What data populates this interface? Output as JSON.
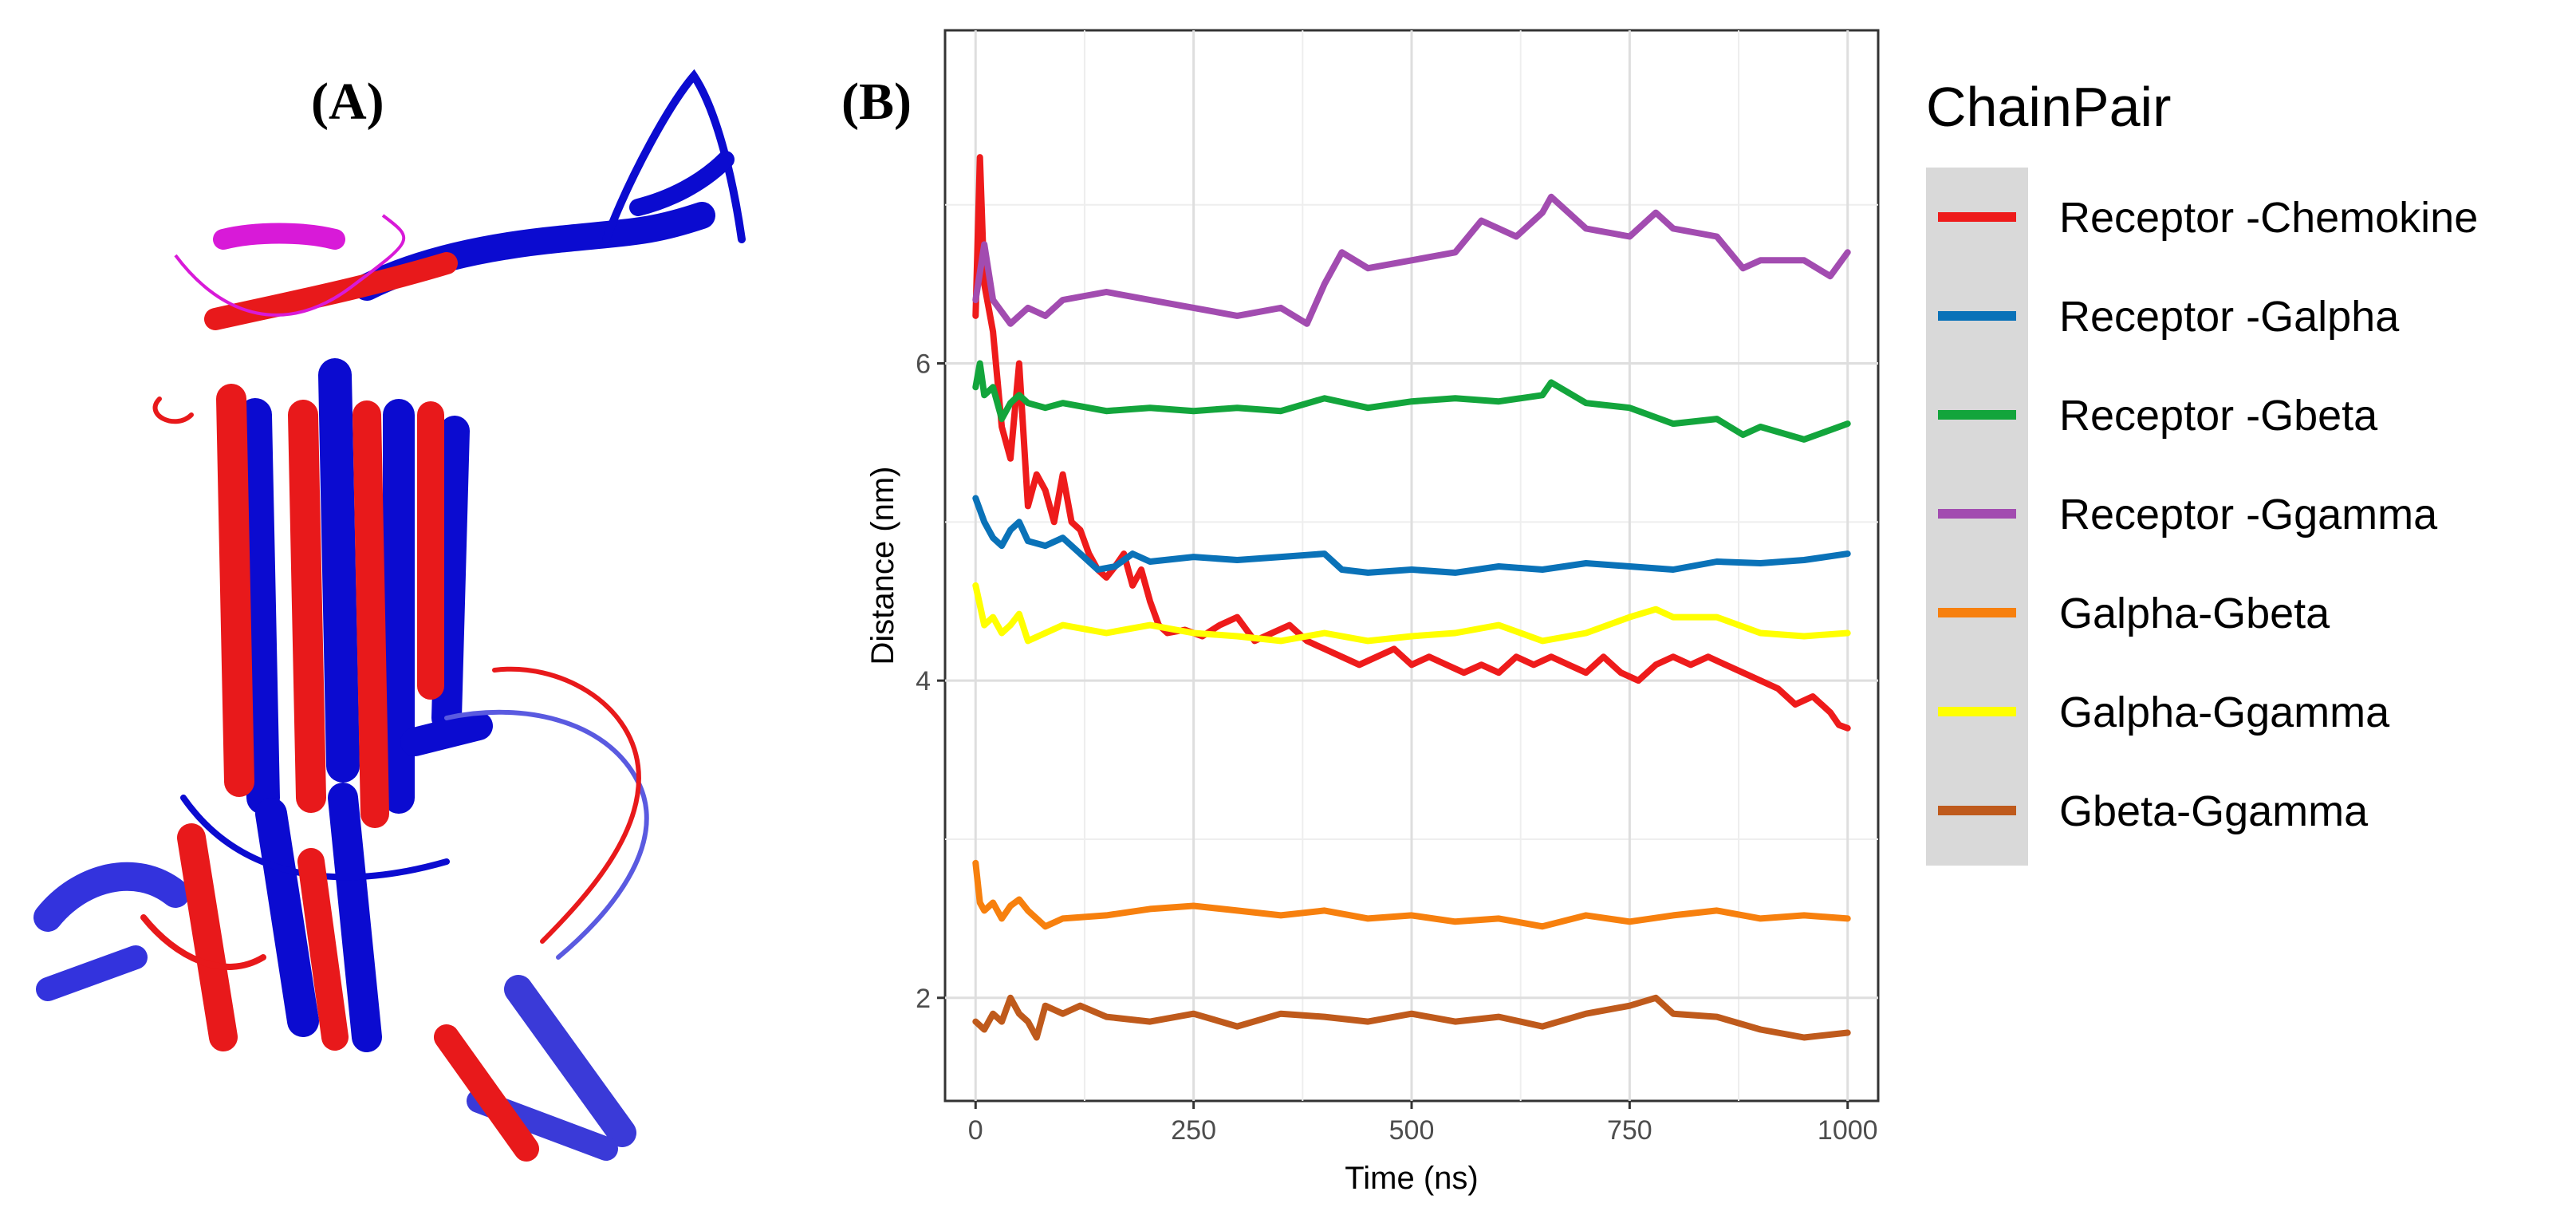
{
  "panel_a": {
    "label": "(A)",
    "image_description_name": "protein-structure-overlay",
    "colors": {
      "red": "#e8191b",
      "blue": "#0b0bd0",
      "magenta": "#d81ad8"
    }
  },
  "panel_b": {
    "label": "(B)"
  },
  "chart_data": {
    "type": "line",
    "title": "",
    "xlabel": "Time (ns)",
    "ylabel": "Distance (nm)",
    "xlim": [
      -35,
      1035
    ],
    "ylim": [
      1.35,
      8.1
    ],
    "xticks": [
      0,
      250,
      500,
      750,
      1000
    ],
    "yticks": [
      2,
      4,
      6
    ],
    "grid": true,
    "legend_title": "ChainPair",
    "legend_position": "right",
    "series": [
      {
        "name": "Receptor -Chemokine",
        "color": "#ee1b1b",
        "x": [
          0,
          5,
          10,
          20,
          30,
          40,
          50,
          60,
          70,
          80,
          90,
          100,
          110,
          120,
          130,
          140,
          150,
          160,
          170,
          180,
          190,
          200,
          210,
          220,
          240,
          260,
          280,
          300,
          320,
          340,
          360,
          380,
          400,
          420,
          440,
          460,
          480,
          500,
          520,
          540,
          560,
          580,
          600,
          620,
          640,
          660,
          680,
          700,
          720,
          740,
          760,
          780,
          800,
          820,
          840,
          860,
          880,
          900,
          920,
          940,
          960,
          980,
          990,
          1000
        ],
        "y": [
          6.3,
          7.3,
          6.5,
          6.2,
          5.6,
          5.4,
          6.0,
          5.1,
          5.3,
          5.2,
          5.0,
          5.3,
          5.0,
          4.95,
          4.8,
          4.7,
          4.65,
          4.72,
          4.8,
          4.6,
          4.7,
          4.5,
          4.35,
          4.3,
          4.32,
          4.28,
          4.35,
          4.4,
          4.25,
          4.3,
          4.35,
          4.25,
          4.2,
          4.15,
          4.1,
          4.15,
          4.2,
          4.1,
          4.15,
          4.1,
          4.05,
          4.1,
          4.05,
          4.15,
          4.1,
          4.15,
          4.1,
          4.05,
          4.15,
          4.05,
          4.0,
          4.1,
          4.15,
          4.1,
          4.15,
          4.1,
          4.05,
          4.0,
          3.95,
          3.85,
          3.9,
          3.8,
          3.72,
          3.7
        ]
      },
      {
        "name": "Receptor -Galpha",
        "color": "#0a72b8",
        "x": [
          0,
          10,
          20,
          30,
          40,
          50,
          60,
          80,
          100,
          120,
          140,
          160,
          180,
          200,
          250,
          300,
          350,
          400,
          420,
          450,
          500,
          550,
          600,
          650,
          700,
          750,
          800,
          850,
          900,
          950,
          1000
        ],
        "y": [
          5.15,
          5.0,
          4.9,
          4.85,
          4.95,
          5.0,
          4.88,
          4.85,
          4.9,
          4.8,
          4.7,
          4.72,
          4.8,
          4.75,
          4.78,
          4.76,
          4.78,
          4.8,
          4.7,
          4.68,
          4.7,
          4.68,
          4.72,
          4.7,
          4.74,
          4.72,
          4.7,
          4.75,
          4.74,
          4.76,
          4.8
        ]
      },
      {
        "name": "Receptor -Gbeta",
        "color": "#13a53c",
        "x": [
          0,
          5,
          10,
          20,
          30,
          40,
          50,
          60,
          80,
          100,
          150,
          200,
          250,
          300,
          350,
          400,
          450,
          500,
          550,
          600,
          650,
          660,
          700,
          750,
          800,
          850,
          880,
          900,
          950,
          1000
        ],
        "y": [
          5.85,
          6.0,
          5.8,
          5.85,
          5.65,
          5.75,
          5.8,
          5.75,
          5.72,
          5.75,
          5.7,
          5.72,
          5.7,
          5.72,
          5.7,
          5.78,
          5.72,
          5.76,
          5.78,
          5.76,
          5.8,
          5.88,
          5.75,
          5.72,
          5.62,
          5.65,
          5.55,
          5.6,
          5.52,
          5.62
        ]
      },
      {
        "name": "Receptor -Ggamma",
        "color": "#a24cb0",
        "x": [
          0,
          10,
          20,
          40,
          60,
          80,
          100,
          150,
          200,
          250,
          300,
          350,
          380,
          400,
          420,
          450,
          500,
          550,
          580,
          600,
          620,
          650,
          660,
          700,
          750,
          780,
          800,
          850,
          880,
          900,
          950,
          980,
          1000
        ],
        "y": [
          6.4,
          6.75,
          6.4,
          6.25,
          6.35,
          6.3,
          6.4,
          6.45,
          6.4,
          6.35,
          6.3,
          6.35,
          6.25,
          6.5,
          6.7,
          6.6,
          6.65,
          6.7,
          6.9,
          6.85,
          6.8,
          6.95,
          7.05,
          6.85,
          6.8,
          6.95,
          6.85,
          6.8,
          6.6,
          6.65,
          6.65,
          6.55,
          6.7
        ]
      },
      {
        "name": "Galpha-Gbeta",
        "color": "#f7800e",
        "x": [
          0,
          5,
          10,
          20,
          30,
          40,
          50,
          60,
          80,
          100,
          150,
          200,
          250,
          300,
          350,
          400,
          450,
          500,
          550,
          600,
          650,
          700,
          750,
          800,
          850,
          900,
          950,
          1000
        ],
        "y": [
          2.85,
          2.6,
          2.55,
          2.6,
          2.5,
          2.58,
          2.62,
          2.55,
          2.45,
          2.5,
          2.52,
          2.56,
          2.58,
          2.55,
          2.52,
          2.55,
          2.5,
          2.52,
          2.48,
          2.5,
          2.45,
          2.52,
          2.48,
          2.52,
          2.55,
          2.5,
          2.52,
          2.5
        ]
      },
      {
        "name": "Galpha-Ggamma",
        "color": "#ffff00",
        "x": [
          0,
          10,
          20,
          30,
          40,
          50,
          60,
          80,
          100,
          150,
          200,
          250,
          300,
          350,
          400,
          450,
          500,
          550,
          600,
          650,
          700,
          750,
          780,
          800,
          850,
          900,
          950,
          1000
        ],
        "y": [
          4.6,
          4.35,
          4.4,
          4.3,
          4.35,
          4.42,
          4.25,
          4.3,
          4.35,
          4.3,
          4.35,
          4.3,
          4.28,
          4.25,
          4.3,
          4.25,
          4.28,
          4.3,
          4.35,
          4.25,
          4.3,
          4.4,
          4.45,
          4.4,
          4.4,
          4.3,
          4.28,
          4.3
        ]
      },
      {
        "name": "Gbeta-Ggamma",
        "color": "#bf5a1c",
        "x": [
          0,
          10,
          20,
          30,
          40,
          50,
          60,
          70,
          80,
          100,
          120,
          150,
          200,
          250,
          300,
          350,
          400,
          450,
          500,
          550,
          600,
          650,
          700,
          750,
          780,
          800,
          850,
          900,
          950,
          1000
        ],
        "y": [
          1.85,
          1.8,
          1.9,
          1.85,
          2.0,
          1.9,
          1.85,
          1.75,
          1.95,
          1.9,
          1.95,
          1.88,
          1.85,
          1.9,
          1.82,
          1.9,
          1.88,
          1.85,
          1.9,
          1.85,
          1.88,
          1.82,
          1.9,
          1.95,
          2.0,
          1.9,
          1.88,
          1.8,
          1.75,
          1.78
        ]
      }
    ]
  }
}
